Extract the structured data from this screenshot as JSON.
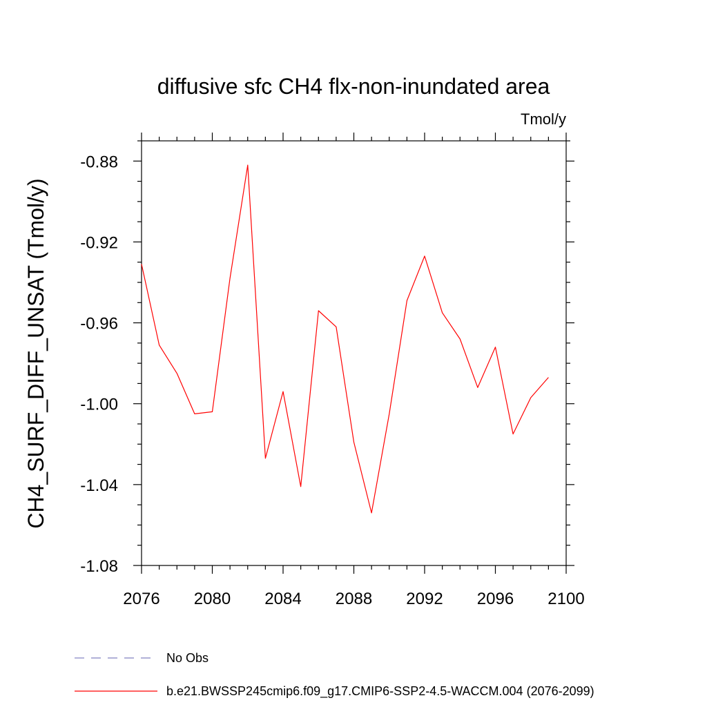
{
  "chart_data": {
    "type": "line",
    "title": "diffusive sfc CH4 flx-non-inundated area",
    "units_label": "Tmol/y",
    "xlabel": "",
    "ylabel": "CH4_SURF_DIFF_UNSAT  (Tmol/y)",
    "xlim": [
      2076,
      2100
    ],
    "ylim": [
      -1.08,
      -0.87
    ],
    "x_ticks": [
      2076,
      2080,
      2084,
      2088,
      2092,
      2096,
      2100
    ],
    "x_tick_labels": [
      "2076",
      "2080",
      "2084",
      "2088",
      "2092",
      "2096",
      "2100"
    ],
    "y_ticks": [
      -1.08,
      -1.04,
      -1.0,
      -0.96,
      -0.92,
      -0.88
    ],
    "y_tick_labels": [
      "-1.08",
      "-1.04",
      "-1.00",
      "-0.96",
      "-0.92",
      "-0.88"
    ],
    "grid": false,
    "legend_position": "bottom",
    "series": [
      {
        "name": "b.e21.BWSSP245cmip6.f09_g17.CMIP6-SSP2-4.5-WACCM.004 (2076-2099)",
        "color": "#ff0000",
        "style": "solid",
        "x": [
          2076,
          2077,
          2078,
          2079,
          2080,
          2081,
          2082,
          2083,
          2084,
          2085,
          2086,
          2087,
          2088,
          2089,
          2090,
          2091,
          2092,
          2093,
          2094,
          2095,
          2096,
          2097,
          2098,
          2099
        ],
        "values": [
          -0.931,
          -0.971,
          -0.985,
          -1.005,
          -1.004,
          -0.938,
          -0.882,
          -1.027,
          -0.994,
          -1.041,
          -0.954,
          -0.962,
          -1.019,
          -1.054,
          -1.005,
          -0.949,
          -0.927,
          -0.955,
          -0.968,
          -0.992,
          -0.972,
          -1.015,
          -0.997,
          -0.987
        ]
      }
    ],
    "legend": [
      {
        "name": "No Obs",
        "color": "#8080c0",
        "style": "dashed"
      },
      {
        "name": "b.e21.BWSSP245cmip6.f09_g17.CMIP6-SSP2-4.5-WACCM.004 (2076-2099)",
        "color": "#ff0000",
        "style": "solid"
      }
    ]
  }
}
